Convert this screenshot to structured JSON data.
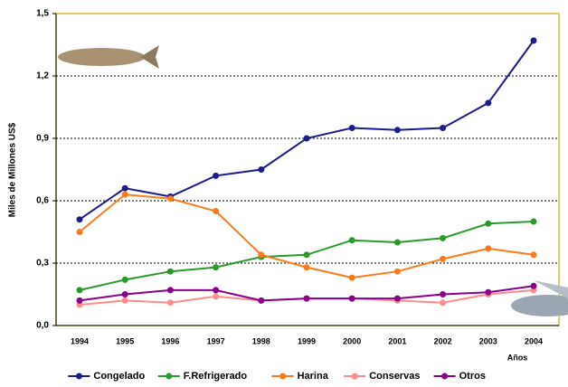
{
  "chart_data": {
    "type": "line",
    "y_label": "Miles de Millones US$",
    "x_label": "Años",
    "categories": [
      "1994",
      "1995",
      "1996",
      "1997",
      "1998",
      "1999",
      "2000",
      "2001",
      "2002",
      "2003",
      "2004"
    ],
    "series": [
      {
        "name": "Congelado",
        "color": "#1c1c8e",
        "values": [
          0.51,
          0.66,
          0.62,
          0.72,
          0.75,
          0.9,
          0.95,
          0.94,
          0.95,
          1.07,
          1.37
        ]
      },
      {
        "name": "F.Refrigerado",
        "color": "#2a9a2a",
        "values": [
          0.17,
          0.22,
          0.26,
          0.28,
          0.33,
          0.34,
          0.41,
          0.4,
          0.42,
          0.49,
          0.5
        ]
      },
      {
        "name": "Harina",
        "color": "#ff7a1a",
        "values": [
          0.45,
          0.63,
          0.61,
          0.55,
          0.34,
          0.28,
          0.23,
          0.26,
          0.32,
          0.37,
          0.34
        ]
      },
      {
        "name": "Conservas",
        "color": "#ff8c8c",
        "values": [
          0.1,
          0.12,
          0.11,
          0.14,
          0.12,
          0.13,
          0.13,
          0.12,
          0.11,
          0.15,
          0.17
        ]
      },
      {
        "name": "Otros",
        "color": "#8a008a",
        "values": [
          0.12,
          0.15,
          0.17,
          0.17,
          0.12,
          0.13,
          0.13,
          0.13,
          0.15,
          0.16,
          0.19
        ]
      }
    ],
    "ylim": [
      0,
      1.5
    ],
    "yticks": [
      {
        "value": 0,
        "label": "0,0"
      },
      {
        "value": 0.3,
        "label": "0,3"
      },
      {
        "value": 0.6,
        "label": "0,6"
      },
      {
        "value": 0.9,
        "label": "0,9"
      },
      {
        "value": 1.2,
        "label": "1,2"
      },
      {
        "value": 1.5,
        "label": "1,5"
      }
    ],
    "grid": true,
    "legend": "bottom"
  }
}
